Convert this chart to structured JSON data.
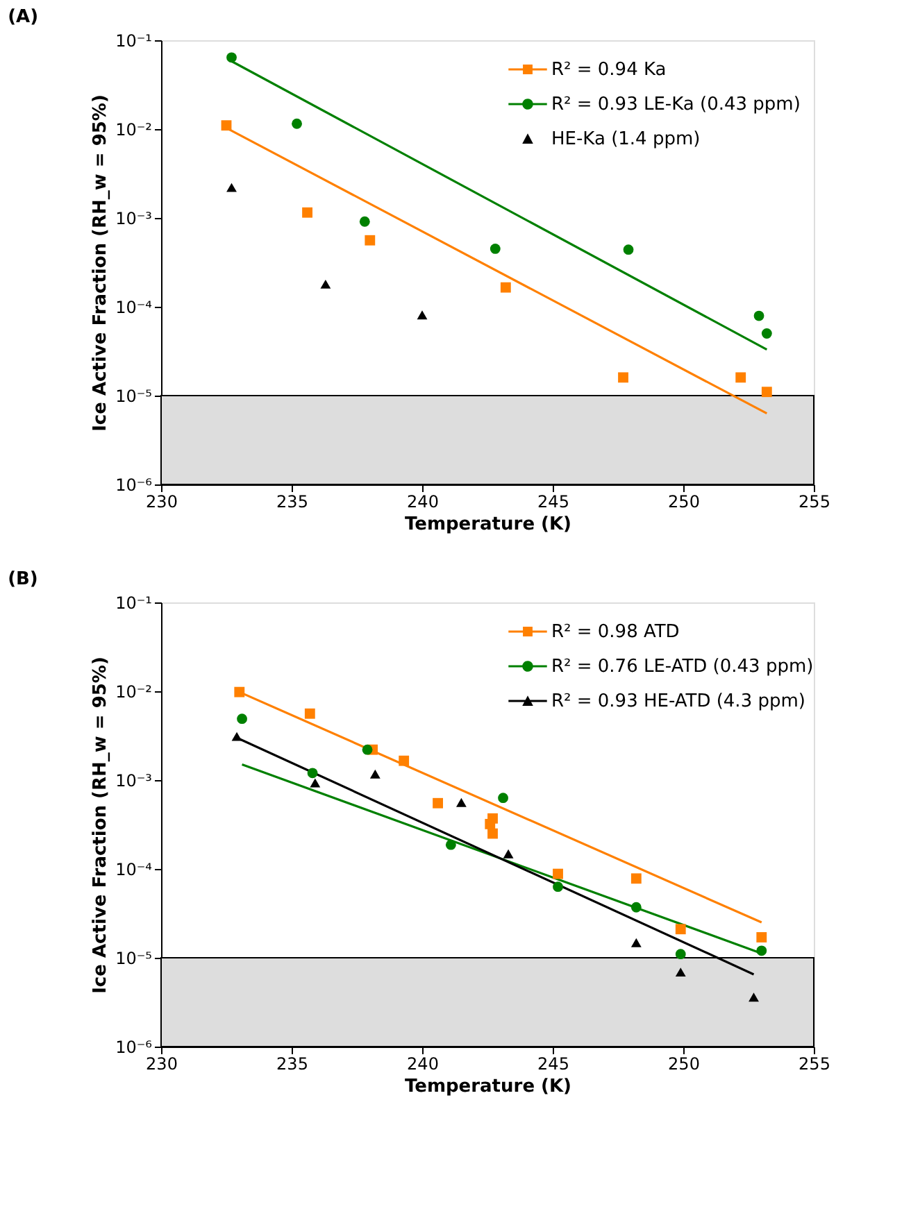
{
  "chart_data": [
    {
      "type": "scatter",
      "title": "(A)",
      "xlabel": "Temperature (K)",
      "ylabel": "Ice Active Fraction (RH_w = 95%)",
      "xlim": [
        230,
        255
      ],
      "xticks": [
        230,
        235,
        240,
        245,
        250,
        255
      ],
      "ylim": [
        1e-06,
        0.1
      ],
      "yticks": [
        {
          "value": 1e-06,
          "label": "10⁻⁶"
        },
        {
          "value": 1e-05,
          "label": "10⁻⁵"
        },
        {
          "value": 0.0001,
          "label": "10⁻⁴"
        },
        {
          "value": 0.001,
          "label": "10⁻³"
        },
        {
          "value": 0.01,
          "label": "10⁻²"
        },
        {
          "value": 0.1,
          "label": "10⁻¹"
        }
      ],
      "log": "y",
      "grid": false,
      "legend": "top right",
      "bands": [
        {
          "axis": "y",
          "from": 1e-06,
          "to": 1e-05,
          "color": "#dddddd"
        }
      ],
      "series": [
        {
          "name": "R² = 0.94 Ka",
          "type": "scatter",
          "marker": "square",
          "color": "#ff8000",
          "x": [
            232.5,
            235.6,
            238.0,
            243.2,
            247.7,
            252.2,
            253.2
          ],
          "values": [
            0.011,
            0.00115,
            0.00056,
            0.000165,
            1.6e-05,
            1.6e-05,
            1.1e-05
          ]
        },
        {
          "type": "line",
          "marker": "none",
          "color": "#ff8000",
          "x": [
            232.5,
            253.2
          ],
          "values": [
            0.0103,
            6.3e-06
          ]
        },
        {
          "name": "R² = 0.93 LE-Ka (0.43 ppm)",
          "type": "scatter",
          "marker": "circle",
          "color": "#008000",
          "x": [
            232.7,
            235.2,
            237.8,
            242.8,
            247.9,
            252.9,
            253.2
          ],
          "values": [
            0.064,
            0.0115,
            0.00091,
            0.00045,
            0.00044,
            7.9e-05,
            5e-05
          ]
        },
        {
          "type": "line",
          "marker": "none",
          "color": "#008000",
          "x": [
            232.7,
            253.2
          ],
          "values": [
            0.058,
            3.3e-05
          ]
        },
        {
          "name": "HE-Ka (1.4 ppm)",
          "type": "scatter",
          "marker": "triangle",
          "color": "#000000",
          "x": [
            232.7,
            236.3,
            240.0
          ],
          "values": [
            0.0022,
            0.00018,
            8.1e-05
          ]
        }
      ]
    },
    {
      "type": "scatter",
      "title": "(B)",
      "xlabel": "Temperature (K)",
      "ylabel": "Ice Active Fraction (RH_w = 95%)",
      "xlim": [
        230,
        255
      ],
      "xticks": [
        230,
        235,
        240,
        245,
        250,
        255
      ],
      "ylim": [
        1e-06,
        0.1
      ],
      "yticks": [
        {
          "value": 1e-06,
          "label": "10⁻⁶"
        },
        {
          "value": 1e-05,
          "label": "10⁻⁵"
        },
        {
          "value": 0.0001,
          "label": "10⁻⁴"
        },
        {
          "value": 0.001,
          "label": "10⁻³"
        },
        {
          "value": 0.01,
          "label": "10⁻²"
        },
        {
          "value": 0.1,
          "label": "10⁻¹"
        }
      ],
      "log": "y",
      "grid": false,
      "legend": "top right",
      "bands": [
        {
          "axis": "y",
          "from": 1e-06,
          "to": 1e-05,
          "color": "#dddddd"
        }
      ],
      "series": [
        {
          "name": "R² = 0.98 ATD",
          "type": "scatter",
          "marker": "square",
          "color": "#ff8000",
          "x": [
            233.0,
            235.7,
            238.1,
            239.3,
            240.6,
            242.6,
            242.7,
            242.7,
            245.2,
            248.2,
            249.9,
            253.0
          ],
          "values": [
            0.0098,
            0.0056,
            0.0022,
            0.00165,
            0.00055,
            0.00032,
            0.00037,
            0.00025,
            8.8e-05,
            7.8e-05,
            2.1e-05,
            1.7e-05
          ]
        },
        {
          "type": "line",
          "marker": "none",
          "color": "#ff8000",
          "x": [
            233.0,
            253.0
          ],
          "values": [
            0.0098,
            2.5e-05
          ]
        },
        {
          "name": "R² = 0.76 LE-ATD (0.43 ppm)",
          "type": "scatter",
          "marker": "circle",
          "color": "#008000",
          "x": [
            233.1,
            235.8,
            237.9,
            241.1,
            243.1,
            245.2,
            248.2,
            249.9,
            253.0
          ],
          "values": [
            0.0049,
            0.0012,
            0.0022,
            0.000187,
            0.00063,
            6.3e-05,
            3.7e-05,
            1.1e-05,
            1.2e-05
          ]
        },
        {
          "type": "line",
          "marker": "none",
          "color": "#008000",
          "x": [
            233.1,
            253.0
          ],
          "values": [
            0.0015,
            1.12e-05
          ]
        },
        {
          "name": "R² = 0.93 HE-ATD (4.3 ppm)",
          "type": "scatter",
          "marker": "triangle",
          "color": "#000000",
          "x": [
            232.9,
            235.9,
            238.2,
            241.5,
            243.3,
            248.2,
            249.9,
            252.7
          ],
          "values": [
            0.0031,
            0.00093,
            0.00117,
            0.00056,
            0.000148,
            1.48e-05,
            6.9e-06,
            3.6e-06
          ]
        },
        {
          "type": "line",
          "marker": "none",
          "color": "#000000",
          "x": [
            232.9,
            252.7
          ],
          "values": [
            0.003,
            6.5e-06
          ]
        }
      ]
    }
  ]
}
